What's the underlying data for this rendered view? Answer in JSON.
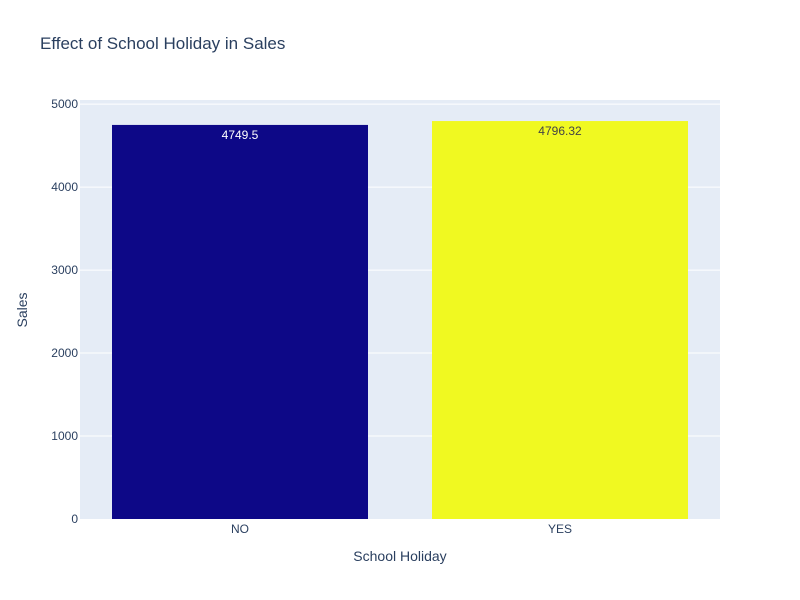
{
  "chart_data": {
    "type": "bar",
    "title": "Effect of School Holiday in Sales",
    "xlabel": "School Holiday",
    "ylabel": "Sales",
    "categories": [
      "NO",
      "YES"
    ],
    "values": [
      4749.5,
      4796.32
    ],
    "value_labels": [
      "4749.5",
      "4796.32"
    ],
    "bar_colors": [
      "#0d0887",
      "#f0f921"
    ],
    "label_colors": [
      "#ffffff",
      "#444444"
    ],
    "ylim": [
      0,
      5050
    ],
    "yticks": [
      0,
      1000,
      2000,
      3000,
      4000,
      5000
    ],
    "ytick_labels": [
      "0",
      "1000",
      "2000",
      "3000",
      "4000",
      "5000"
    ],
    "grid": true,
    "legend": "none",
    "plot_bg": "#e5ecf6",
    "grid_color": "#ffffff",
    "text_color": "#2a3f5f"
  }
}
